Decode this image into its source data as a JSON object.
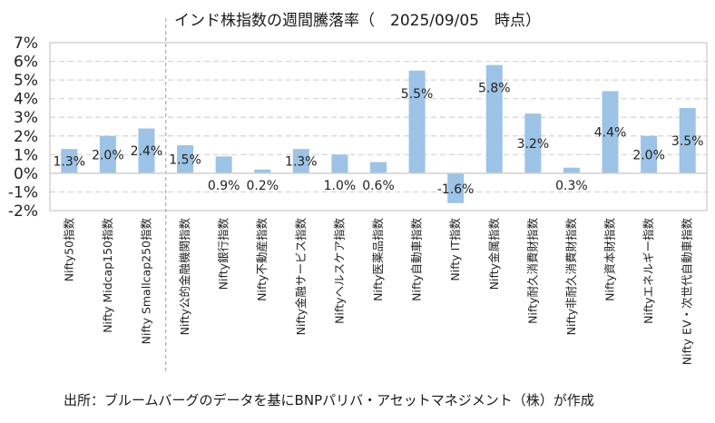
{
  "chart_data": {
    "type": "bar",
    "title": "インド株指数の週間騰落率（　2025/09/05　時点）",
    "xlabel": "",
    "ylabel": "",
    "ylim": [
      -2,
      7
    ],
    "yticks": [
      7,
      6,
      5,
      4,
      3,
      2,
      1,
      0,
      -1,
      -2
    ],
    "ytick_labels": [
      "7%",
      "6%",
      "5%",
      "4%",
      "3%",
      "2%",
      "1%",
      "0%",
      "-1%",
      "-2%"
    ],
    "grid": true,
    "legend": "none",
    "bar_color": "#9dc3e6",
    "categories": [
      "Nifty50指数",
      "Nifty Midcap150指数",
      "Nifty Smallcap250指数",
      "Nifty公的金融機関指数",
      "Nifty銀行指数",
      "Nifty不動産指数",
      "Nifty金融サービス指数",
      "Niftyヘルスケア指数",
      "Nifty医薬品指数",
      "Nifty自動車指数",
      "Nifty IT指数",
      "Nifty金属指数",
      "Nifty耐久消費財指数",
      "Nifty非耐久消費財指数",
      "Nifty資本財指数",
      "Niftyエネルギー指数",
      "Nifty EV・次世代自動車指数"
    ],
    "values": [
      1.3,
      2.0,
      2.4,
      1.5,
      0.9,
      0.2,
      1.3,
      1.0,
      0.6,
      5.5,
      -1.6,
      5.8,
      3.2,
      0.3,
      4.4,
      2.0,
      3.5
    ],
    "data_labels": [
      "1.3%",
      "2.0%",
      "2.4%",
      "1.5%",
      "0.9%",
      "0.2%",
      "1.3%",
      "1.0%",
      "0.6%",
      "5.5%",
      "-1.6%",
      "5.8%",
      "3.2%",
      "0.3%",
      "4.4%",
      "2.0%",
      "3.5%"
    ],
    "separator_after_index": 2,
    "source": "出所：ブルームバーグのデータを基にBNPパリバ・アセットマネジメント（株）が作成"
  }
}
